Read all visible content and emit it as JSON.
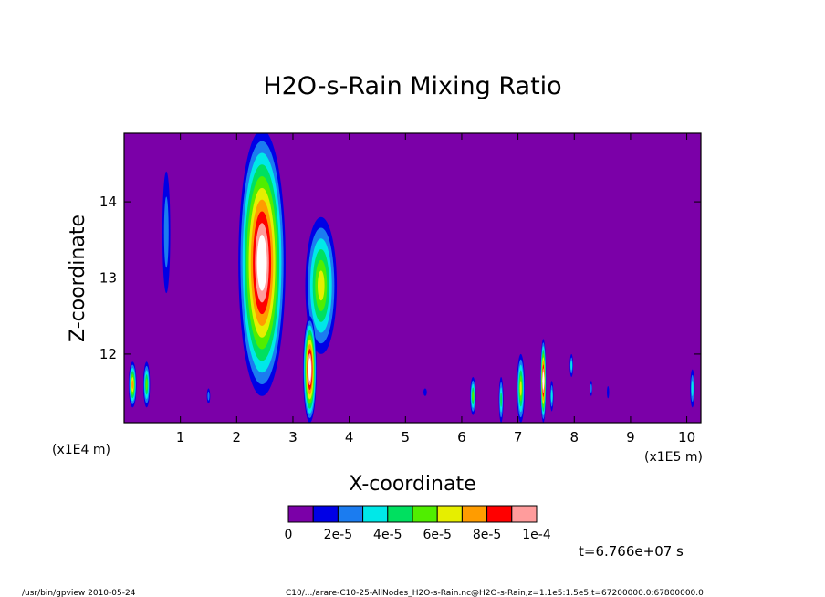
{
  "chart_data": {
    "type": "heatmap",
    "title": "H2O-s-Rain Mixing Ratio",
    "xlabel": "X-coordinate",
    "ylabel": "Z-coordinate",
    "x_unit_note": "(x1E5 m)",
    "y_unit_note": "(x1E4 m)",
    "xlim": [
      0,
      10.25
    ],
    "ylim": [
      11.1,
      14.9
    ],
    "x_ticks": [
      1,
      2,
      3,
      4,
      5,
      6,
      7,
      8,
      9,
      10
    ],
    "y_ticks": [
      12,
      13,
      14
    ],
    "background_value": 0,
    "colorbar": {
      "levels": [
        0,
        1e-05,
        2e-05,
        3e-05,
        4e-05,
        5e-05,
        6e-05,
        7e-05,
        8e-05,
        9e-05,
        0.0001
      ],
      "colors": [
        "#7b00a8",
        "#0000e6",
        "#1b7cf0",
        "#00e8e8",
        "#00e060",
        "#50ee00",
        "#e6ee00",
        "#ff9c00",
        "#ff0000",
        "#ff9c9c"
      ],
      "labels": [
        "0",
        "2e-5",
        "4e-5",
        "6e-5",
        "8e-5",
        "1e-4"
      ],
      "saturation_color": "#ffffff"
    },
    "regions": [
      {
        "x": 2.45,
        "z": 13.2,
        "rx": 0.42,
        "rz": 1.75,
        "value": 0.00012
      },
      {
        "x": 3.5,
        "z": 12.9,
        "rx": 0.28,
        "rz": 0.9,
        "value": 6e-05
      },
      {
        "x": 3.3,
        "z": 11.8,
        "rx": 0.12,
        "rz": 0.7,
        "value": 0.00012
      },
      {
        "x": 0.75,
        "z": 13.6,
        "rx": 0.07,
        "rz": 0.8,
        "value": 2e-05
      },
      {
        "x": 0.15,
        "z": 11.6,
        "rx": 0.07,
        "rz": 0.3,
        "value": 7e-05
      },
      {
        "x": 0.4,
        "z": 11.6,
        "rx": 0.06,
        "rz": 0.3,
        "value": 5e-05
      },
      {
        "x": 1.5,
        "z": 11.45,
        "rx": 0.03,
        "rz": 0.1,
        "value": 2e-05
      },
      {
        "x": 5.35,
        "z": 11.5,
        "rx": 0.03,
        "rz": 0.05,
        "value": 1e-05
      },
      {
        "x": 6.2,
        "z": 11.45,
        "rx": 0.05,
        "rz": 0.25,
        "value": 5e-05
      },
      {
        "x": 6.7,
        "z": 11.4,
        "rx": 0.04,
        "rz": 0.3,
        "value": 4e-05
      },
      {
        "x": 7.05,
        "z": 11.55,
        "rx": 0.07,
        "rz": 0.45,
        "value": 6e-05
      },
      {
        "x": 7.45,
        "z": 11.65,
        "rx": 0.05,
        "rz": 0.55,
        "value": 0.0001
      },
      {
        "x": 7.6,
        "z": 11.45,
        "rx": 0.03,
        "rz": 0.2,
        "value": 3e-05
      },
      {
        "x": 7.95,
        "z": 11.85,
        "rx": 0.03,
        "rz": 0.15,
        "value": 3e-05
      },
      {
        "x": 8.3,
        "z": 11.55,
        "rx": 0.02,
        "rz": 0.1,
        "value": 2e-05
      },
      {
        "x": 8.6,
        "z": 11.5,
        "rx": 0.02,
        "rz": 0.08,
        "value": 1e-05
      },
      {
        "x": 10.1,
        "z": 11.55,
        "rx": 0.04,
        "rz": 0.25,
        "value": 3e-05
      }
    ]
  },
  "time_label": "t=6.766e+07 s",
  "footer_left": "/usr/bin/gpview  2010-05-24",
  "footer_right": "C10/.../arare-C10-25-AllNodes_H2O-s-Rain.nc@H2O-s-Rain,z=1.1e5:1.5e5,t=67200000.0:67800000.0"
}
